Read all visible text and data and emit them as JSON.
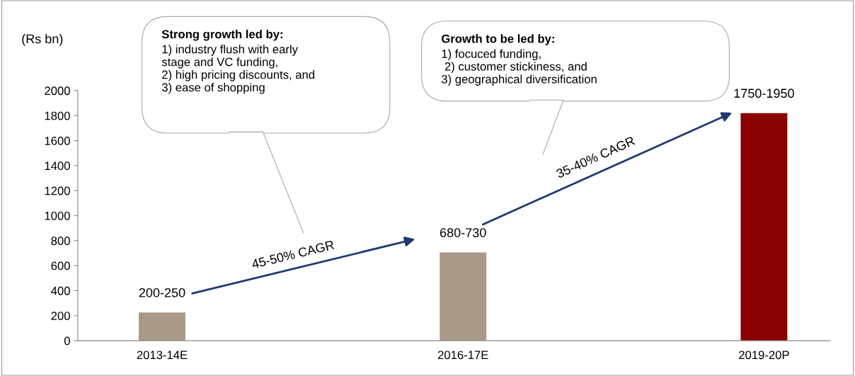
{
  "chart_data": {
    "type": "bar",
    "ylabel": "(Rs bn)",
    "categories": [
      "2013-14E",
      "2016-17E",
      "2019-20P"
    ],
    "values": [
      225,
      705,
      1820
    ],
    "value_labels": [
      "200-250",
      "680-730",
      "1750-1950"
    ],
    "colors": [
      "#a89a87",
      "#a89a87",
      "#8b0000"
    ],
    "ylim": [
      0,
      2000
    ],
    "yticks": [
      0,
      200,
      400,
      600,
      800,
      1000,
      1200,
      1400,
      1600,
      1800,
      2000
    ],
    "grid": false,
    "legend": false,
    "annotations": [
      {
        "text": "45-50% CAGR"
      },
      {
        "text": "35-40% CAGR"
      },
      {
        "text": "Strong growth led by:\n1) industry flush with early\nstage and VC funding,\n2) high pricing discounts, and\n3) ease of shopping"
      },
      {
        "text": "Growth to be led by:\n1) focuced funding,\n 2) customer stickiness, and\n3) geographical diversification"
      }
    ]
  }
}
